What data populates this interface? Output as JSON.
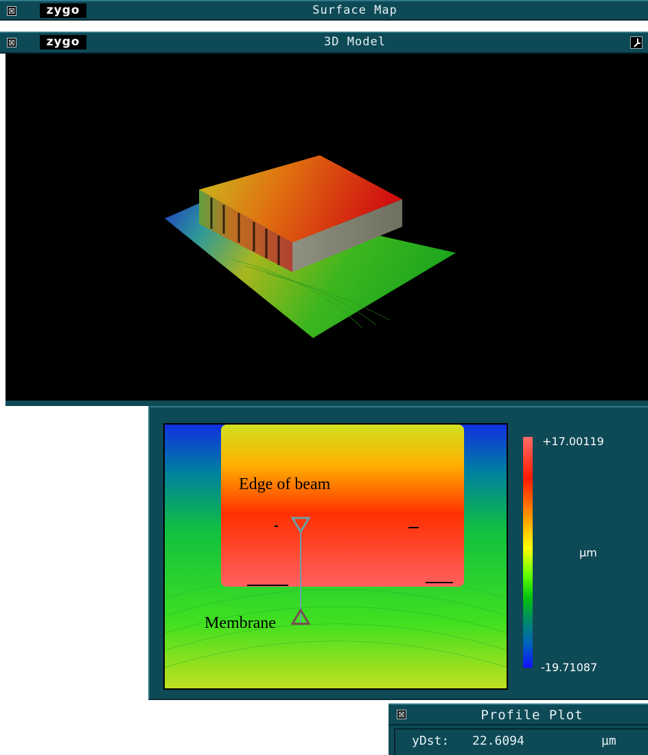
{
  "windows": {
    "surface_map": {
      "logo": "zygo",
      "title": "Surface Map"
    },
    "model_3d": {
      "logo": "zygo",
      "title": "3D Model"
    }
  },
  "map": {
    "annotations": {
      "edge_label": "Edge of beam",
      "membrane_label": "Membrane"
    },
    "scale": {
      "max": "+17.00119",
      "unit": "µm",
      "min": "-19.71087"
    }
  },
  "profile_plot": {
    "title": "Profile Plot",
    "readout": {
      "label": "yDst:",
      "value": "22.6094",
      "unit": "µm"
    }
  },
  "icons": {
    "close": "close-box-icon",
    "pin": "pin-icon"
  },
  "colors": {
    "titlebar": "#0e4956",
    "panel": "#0e4956",
    "scale_high": "#ff6a6a",
    "scale_low": "#1010ff"
  }
}
